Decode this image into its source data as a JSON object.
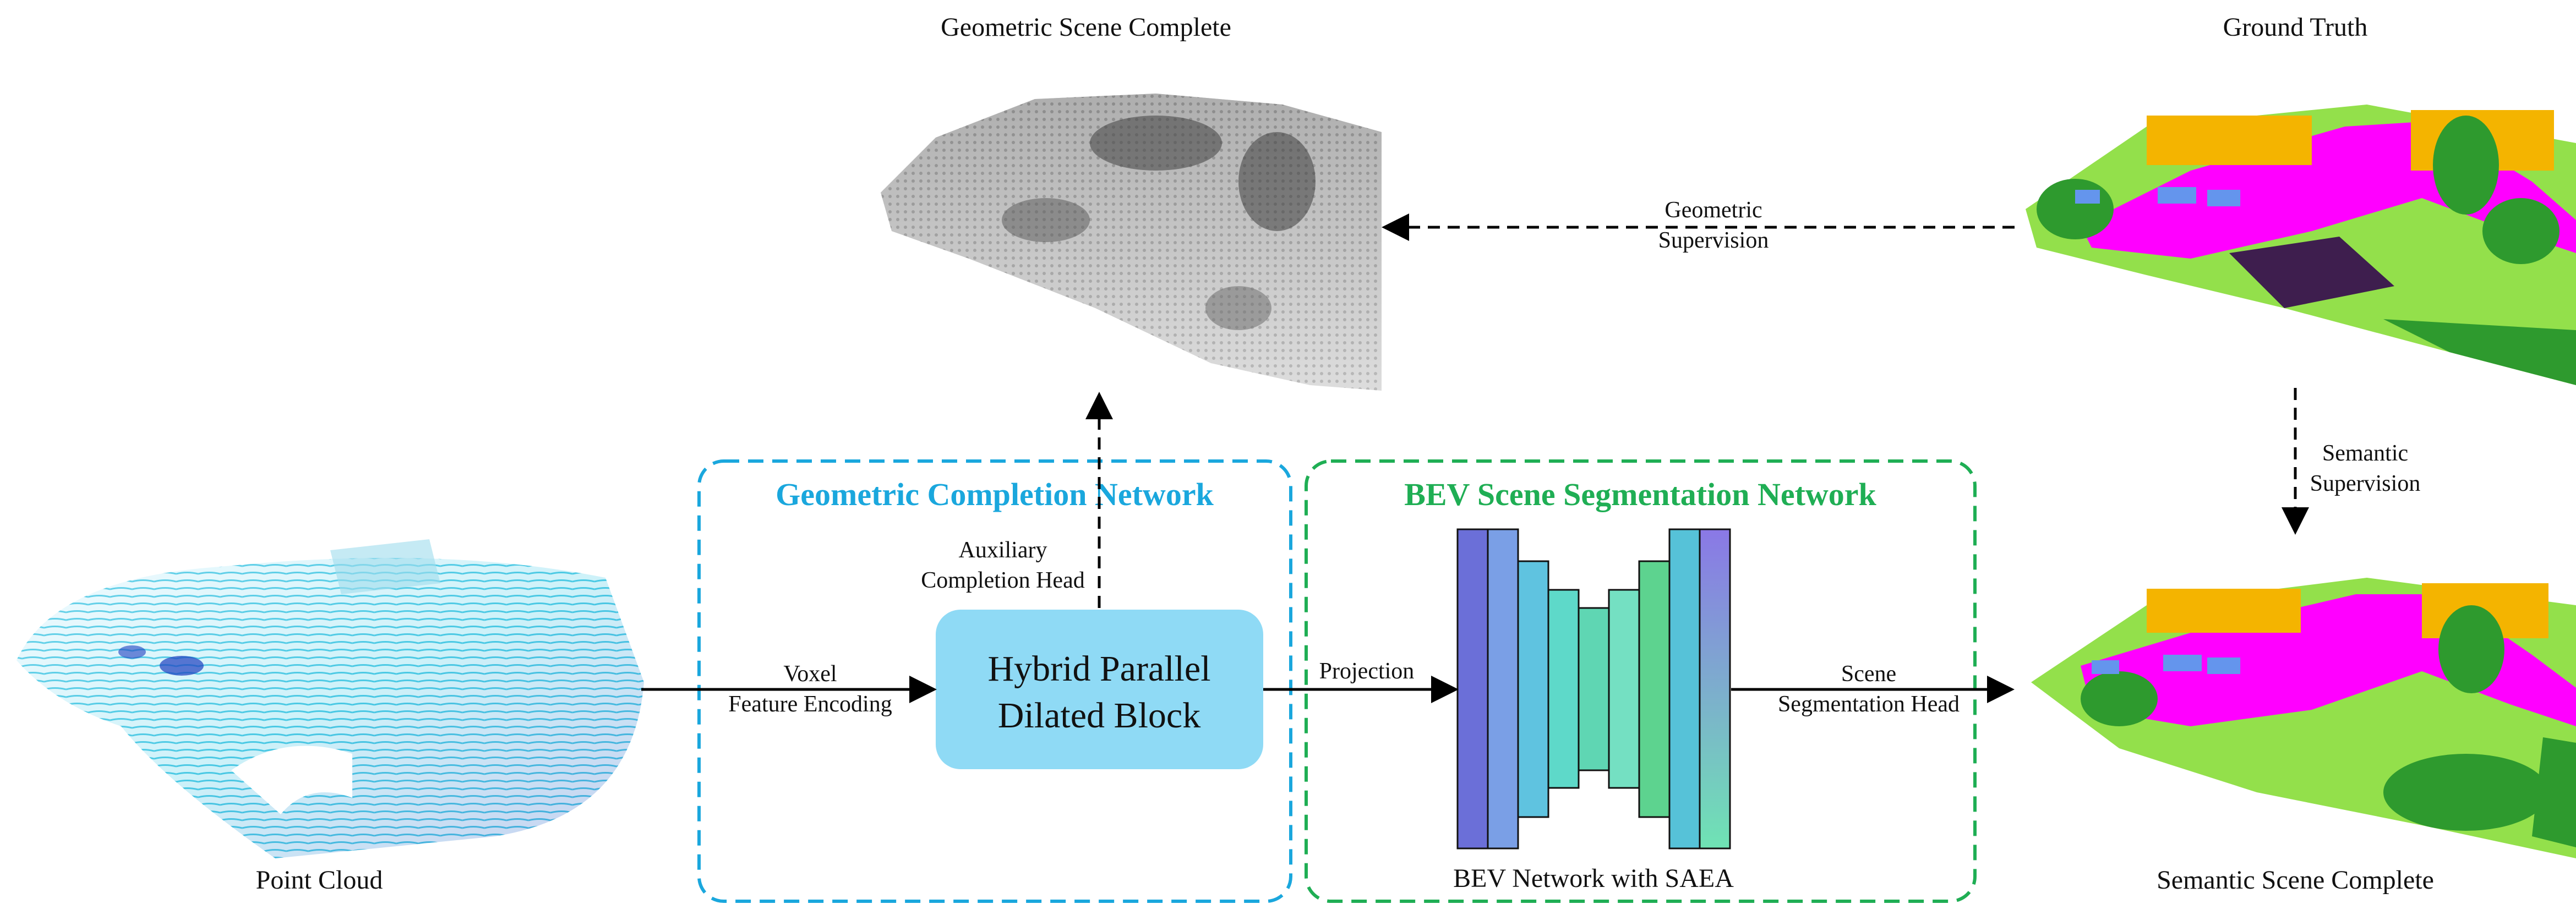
{
  "labels": {
    "geometric_scene": "Geometric Scene Complete",
    "ground_truth": "Ground Truth",
    "point_cloud": "Point Cloud",
    "semantic_scene": "Semantic Scene Complete",
    "bev_with_saea": "BEV Network with SAEA"
  },
  "edges": {
    "voxel_line1": "Voxel",
    "voxel_line2": "Feature Encoding",
    "projection": "Projection",
    "scene_head_line1": "Scene",
    "scene_head_line2": "Segmentation Head",
    "aux_line1": "Auxiliary",
    "aux_line2": "Completion Head",
    "geo_sup_line1": "Geometric",
    "geo_sup_line2": "Supervision",
    "sem_sup_line1": "Semantic",
    "sem_sup_line2": "Supervision"
  },
  "modules": {
    "gcn_title": "Geometric Completion Network",
    "bev_title": "BEV Scene Segmentation Network",
    "hybrid_line1": "Hybrid Parallel",
    "hybrid_line2": "Dilated Block"
  },
  "colors": {
    "gcn_accent": "#1aa7dd",
    "bev_accent": "#1fae54",
    "hybrid_block": "#8fdaf5",
    "road": "#ff00ff",
    "vegetation": "#2e9a2e",
    "building": "#f4b400",
    "car": "#6495ed",
    "terrain": "#93e04b"
  }
}
